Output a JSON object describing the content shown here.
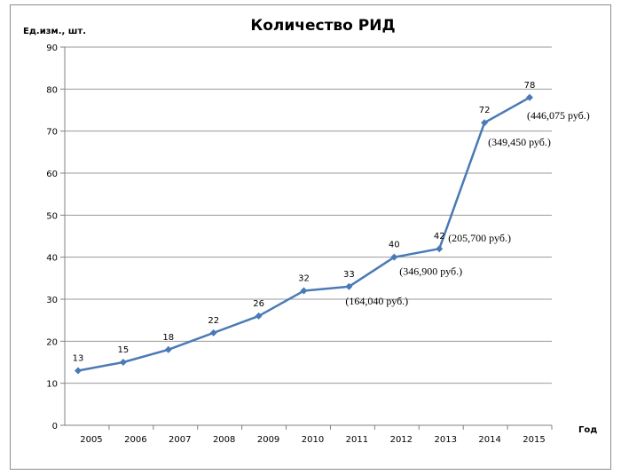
{
  "chart_data": {
    "type": "line",
    "title": "Количество РИД",
    "ylabel": "Ед.изм., шт.",
    "xlabel": "Год",
    "categories": [
      "2005",
      "2006",
      "2007",
      "2008",
      "2009",
      "2010",
      "2011",
      "2012",
      "2013",
      "2014",
      "2015"
    ],
    "y_ticks": [
      "0",
      "10",
      "20",
      "30",
      "40",
      "50",
      "60",
      "70",
      "80",
      "90"
    ],
    "ylim": [
      0,
      90
    ],
    "grid": true,
    "series": [
      {
        "color": "#4a7ab5",
        "x": [
          2005,
          2006,
          2007,
          2008,
          2009,
          2010,
          2011,
          2012,
          2013,
          2014,
          2015
        ],
        "values": [
          13,
          15,
          18,
          22,
          26,
          32,
          33,
          40,
          42,
          72,
          78
        ],
        "labels": [
          "13",
          "15",
          "18",
          "22",
          "26",
          "32",
          "33",
          "40",
          "42",
          "72",
          "78"
        ]
      }
    ],
    "annotations": [
      {
        "year": 2011,
        "text": "(164,040 руб.)"
      },
      {
        "year": 2012,
        "text": "(346,900 руб.)"
      },
      {
        "year": 2013,
        "text": "(205,700 руб.)"
      },
      {
        "year": 2014,
        "text": "(349,450 руб.)"
      },
      {
        "year": 2015,
        "text": "(446,075 руб.)"
      }
    ]
  }
}
